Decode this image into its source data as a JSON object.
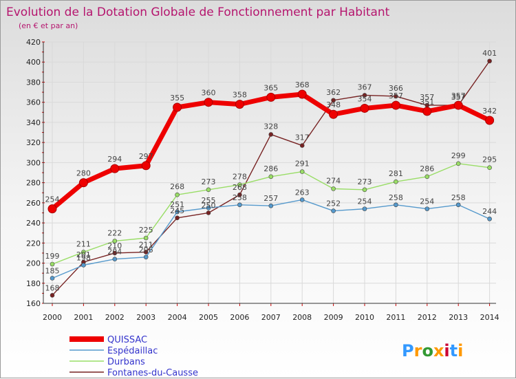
{
  "chart_data": {
    "type": "line",
    "title": "Evolution de la Dotation Globale de Fonctionnement par Habitant",
    "subtitle": "(en € et par an)",
    "xlabel": "",
    "ylabel": "",
    "ylim": [
      160,
      420
    ],
    "yticks": [
      160,
      180,
      200,
      220,
      240,
      260,
      280,
      300,
      320,
      340,
      360,
      380,
      400,
      420
    ],
    "categories": [
      "2000",
      "2001",
      "2002",
      "2003",
      "2004",
      "2005",
      "2006",
      "2007",
      "2008",
      "2009",
      "2010",
      "2011",
      "2012",
      "2013",
      "2014"
    ],
    "series": [
      {
        "name": "QUISSAC",
        "color": "#ee0000",
        "values": [
          254,
          280,
          294,
          297,
          355,
          360,
          358,
          365,
          368,
          348,
          354,
          357,
          351,
          357,
          342
        ]
      },
      {
        "name": "Espédaillac",
        "color": "#5599cc",
        "values": [
          185,
          198,
          204,
          206,
          251,
          255,
          258,
          257,
          263,
          252,
          254,
          258,
          254,
          258,
          244
        ]
      },
      {
        "name": "Durbans",
        "color": "#99dd66",
        "values": [
          199,
          211,
          222,
          225,
          268,
          273,
          278,
          286,
          291,
          274,
          273,
          281,
          286,
          299,
          295
        ]
      },
      {
        "name": "Fontanes-du-Causse",
        "color": "#772222",
        "values": [
          168,
          201,
          210,
          211,
          245,
          250,
          268,
          328,
          317,
          362,
          367,
          366,
          357,
          357,
          401
        ]
      }
    ],
    "legend_position": "bottom-left",
    "grid": true
  },
  "brand": {
    "logo_text": "Proxiti"
  }
}
